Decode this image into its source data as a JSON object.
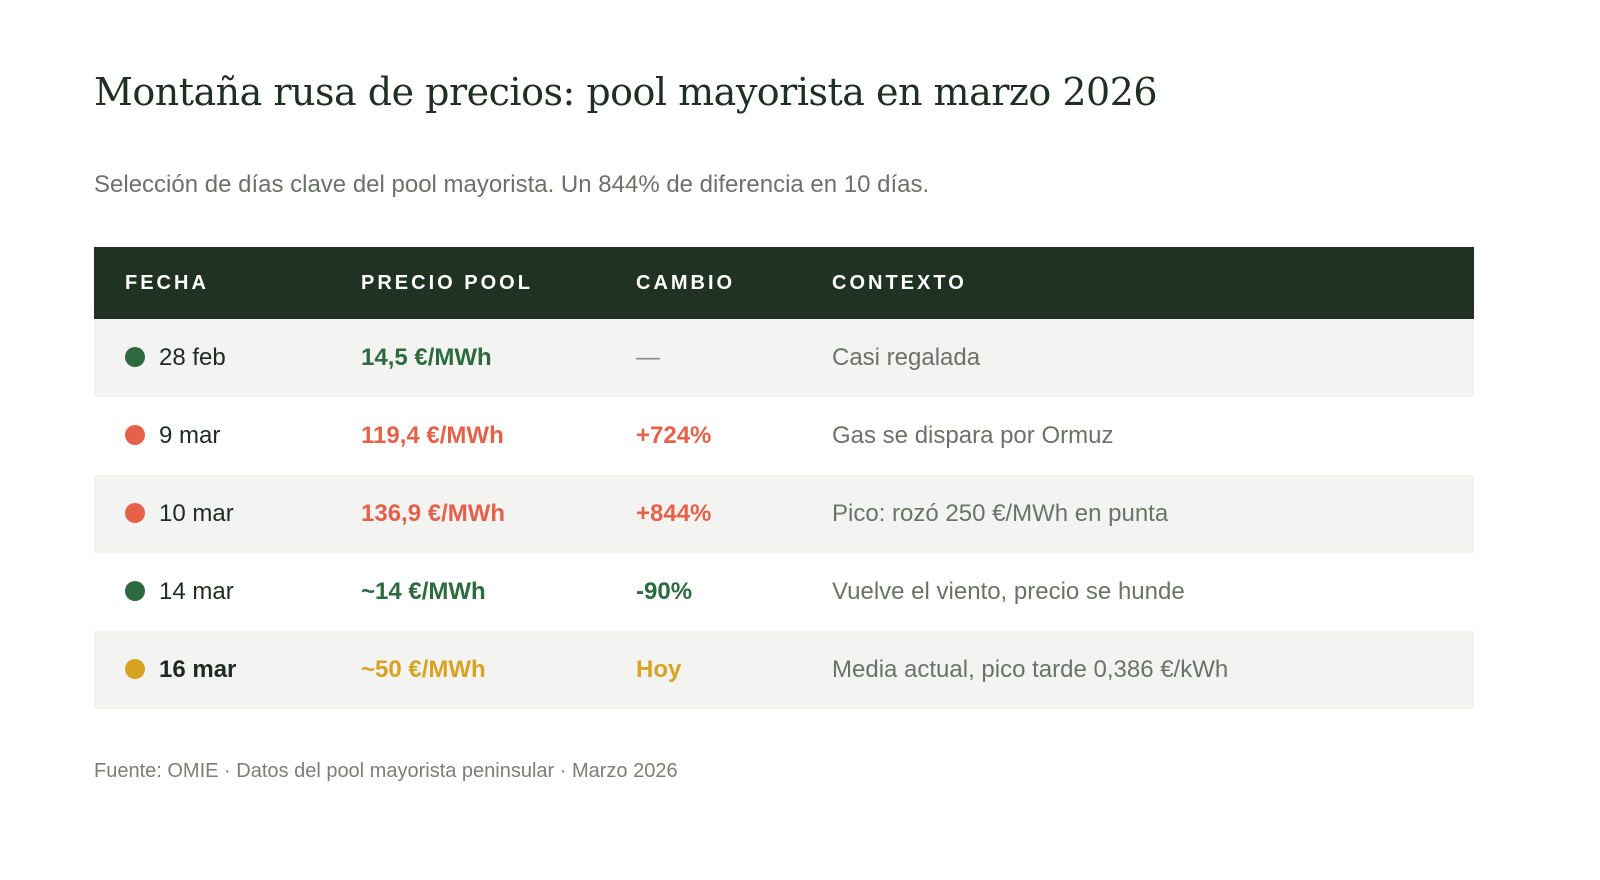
{
  "title": "Montaña rusa de precios: pool mayorista en marzo 2026",
  "subtitle": "Selección de días clave del pool mayorista. Un 844% de diferencia en 10 días.",
  "colors": {
    "green": "#2d6a3e",
    "red": "#e5614a",
    "amber": "#d9a322",
    "header": "#203222"
  },
  "table": {
    "headers": [
      "FECHA",
      "PRECIO POOL",
      "CAMBIO",
      "CONTEXTO"
    ],
    "rows": [
      {
        "fecha": "28 feb",
        "precio": "14,5 €/MWh",
        "cambio": "—",
        "contexto": "Casi regalada",
        "color": "#2d6a3e",
        "cambio_color": "#888888"
      },
      {
        "fecha": "9 mar",
        "precio": "119,4 €/MWh",
        "cambio": "+724%",
        "contexto": "Gas se dispara por Ormuz",
        "color": "#e5614a",
        "cambio_color": "#e5614a"
      },
      {
        "fecha": "10 mar",
        "precio": "136,9 €/MWh",
        "cambio": "+844%",
        "contexto": "Pico: rozó 250 €/MWh en punta",
        "color": "#e5614a",
        "cambio_color": "#e5614a"
      },
      {
        "fecha": "14 mar",
        "precio": "~14 €/MWh",
        "cambio": "-90%",
        "contexto": "Vuelve el viento, precio se hunde",
        "color": "#2d6a3e",
        "cambio_color": "#2d6a3e"
      },
      {
        "fecha": "16 mar",
        "precio": "~50 €/MWh",
        "cambio": "Hoy",
        "contexto": "Media actual, pico tarde 0,386 €/kWh",
        "color": "#d9a322",
        "cambio_color": "#d9a322",
        "bold_date": true
      }
    ]
  },
  "footer": "Fuente: OMIE · Datos del pool mayorista peninsular · Marzo 2026"
}
